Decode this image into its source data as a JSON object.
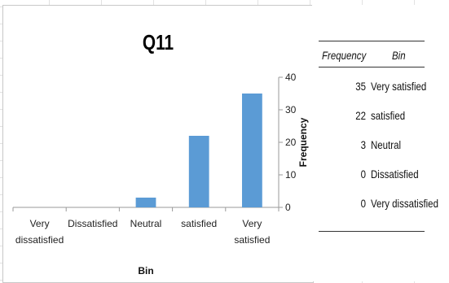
{
  "chart_data": {
    "type": "bar",
    "title": "Q11",
    "xlabel": "Bin",
    "ylabel": "Frequency",
    "categories": [
      "Very\ndissatisfied",
      "Dissatisfied",
      "Neutral",
      "satisfied",
      "Very\nsatisfied"
    ],
    "values": [
      0,
      0,
      3,
      22,
      35
    ],
    "ylim": [
      0,
      40
    ],
    "yticks": [
      0,
      10,
      20,
      30,
      40
    ],
    "bar_color": "#5b9bd5",
    "y_axis_side": "right",
    "grid": false
  },
  "table": {
    "headers": [
      "Frequency",
      "Bin"
    ],
    "rows": [
      {
        "frequency": "35",
        "bin": "Very satisfied"
      },
      {
        "frequency": "22",
        "bin": "satisfied"
      },
      {
        "frequency": "3",
        "bin": "Neutral"
      },
      {
        "frequency": "0",
        "bin": "Dissatisfied"
      },
      {
        "frequency": "0",
        "bin": "Very dissatisfied"
      }
    ]
  }
}
